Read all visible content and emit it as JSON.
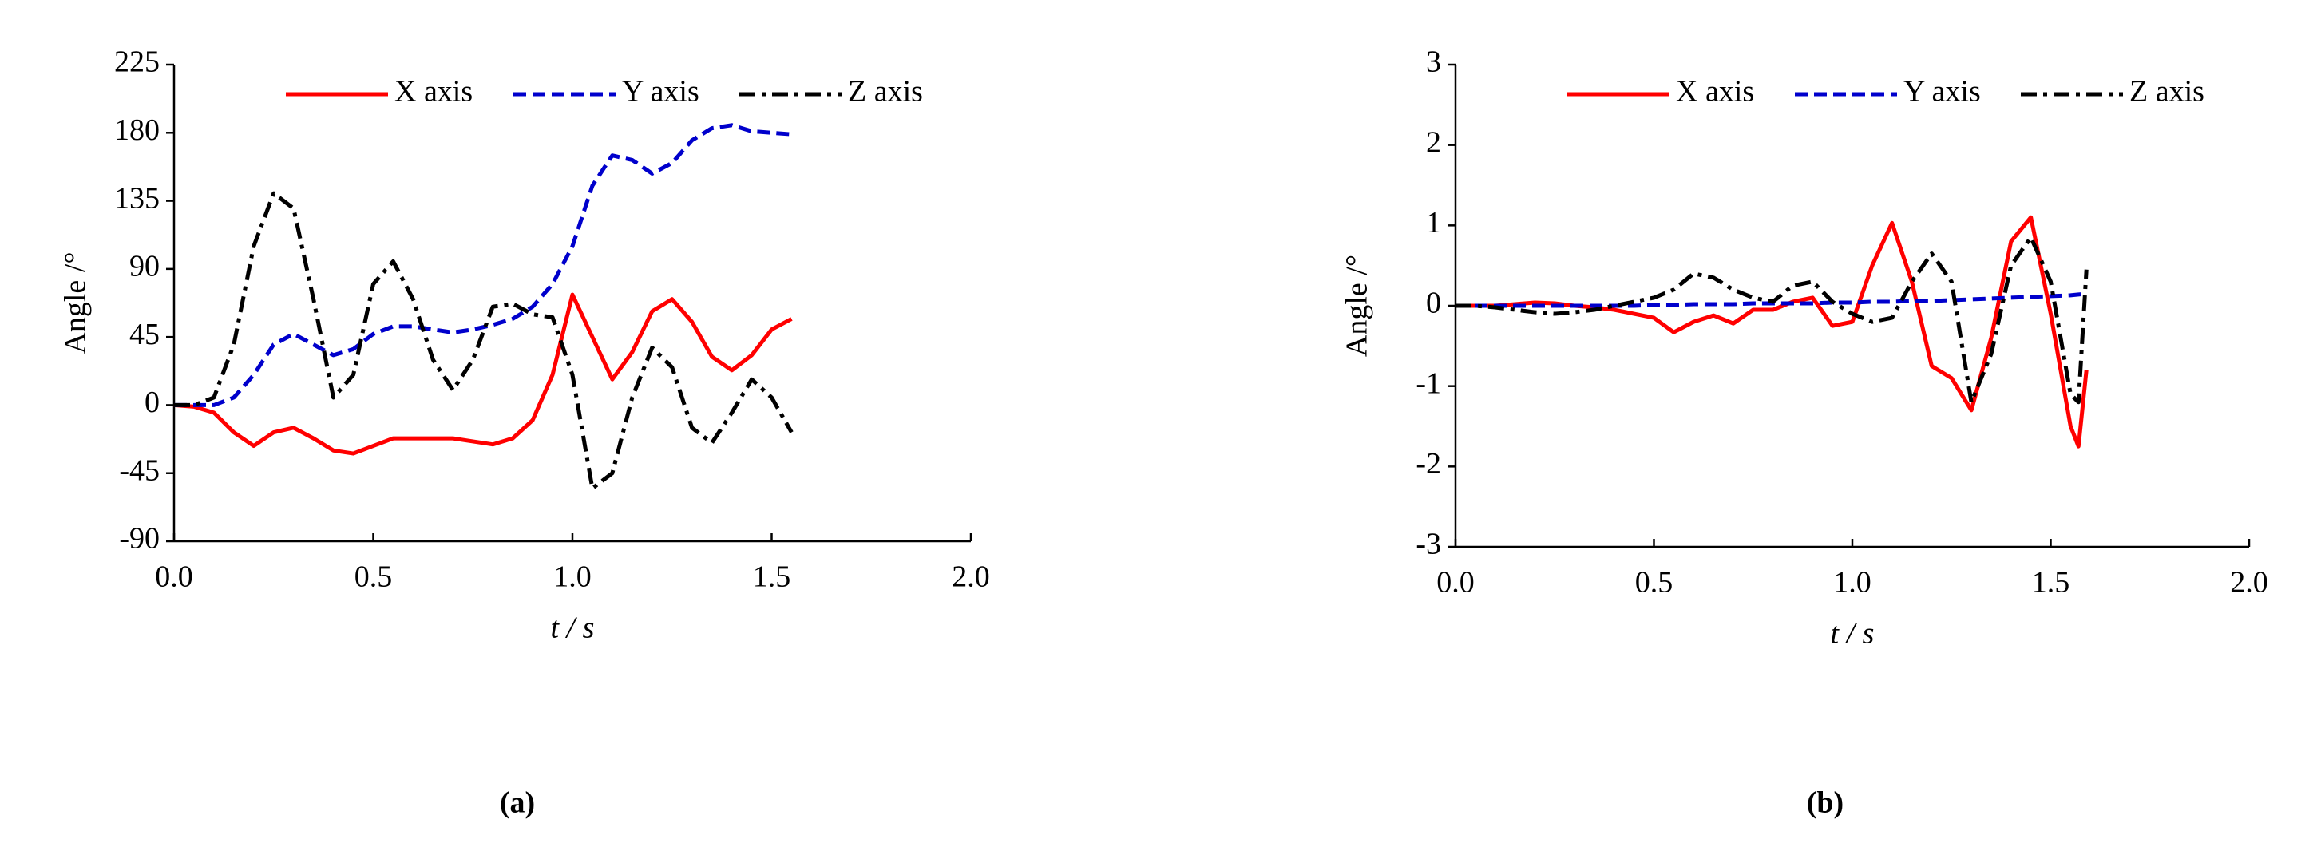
{
  "chart_data": [
    {
      "type": "line",
      "panel_label": "(a)",
      "xlabel": "t / s",
      "ylabel": "Angle /°",
      "xlim": [
        0,
        2
      ],
      "xticks": [
        {
          "value": 0,
          "label": "0.0"
        },
        {
          "value": 0.5,
          "label": "0.5"
        },
        {
          "value": 1,
          "label": "1.0"
        },
        {
          "value": 1.5,
          "label": "1.5"
        },
        {
          "value": 2,
          "label": "2.0"
        }
      ],
      "ylim": [
        -90,
        225
      ],
      "yticks": [
        -90,
        -45,
        0,
        45,
        90,
        135,
        180,
        225
      ],
      "x": [
        0,
        0.05,
        0.1,
        0.15,
        0.2,
        0.25,
        0.3,
        0.35,
        0.4,
        0.45,
        0.5,
        0.55,
        0.6,
        0.65,
        0.7,
        0.75,
        0.8,
        0.85,
        0.9,
        0.95,
        1.0,
        1.05,
        1.1,
        1.15,
        1.2,
        1.25,
        1.3,
        1.35,
        1.4,
        1.45,
        1.5,
        1.55
      ],
      "series": [
        {
          "name": "X axis",
          "color": "#ff0000",
          "dash": "solid",
          "values": [
            0,
            -1,
            -5,
            -18,
            -27,
            -18,
            -15,
            -22,
            -30,
            -32,
            -27,
            -22,
            -22,
            -22,
            -22,
            -24,
            -26,
            -22,
            -10,
            20,
            73,
            45,
            17,
            35,
            62,
            70,
            55,
            32,
            23,
            33,
            50,
            57
          ]
        },
        {
          "name": "Y axis",
          "color": "#0000cc",
          "dash": "dash",
          "values": [
            0,
            0,
            0,
            5,
            20,
            40,
            47,
            40,
            33,
            37,
            47,
            52,
            52,
            50,
            48,
            50,
            53,
            57,
            65,
            80,
            105,
            145,
            165,
            162,
            153,
            160,
            175,
            183,
            185,
            181,
            180,
            179
          ]
        },
        {
          "name": "Z axis",
          "color": "#000000",
          "dash": "dashdot",
          "values": [
            0,
            0,
            5,
            40,
            105,
            140,
            130,
            70,
            5,
            20,
            80,
            95,
            70,
            30,
            10,
            30,
            65,
            67,
            60,
            58,
            20,
            -55,
            -45,
            5,
            38,
            25,
            -15,
            -25,
            -5,
            17,
            5,
            -18
          ]
        }
      ]
    },
    {
      "type": "line",
      "panel_label": "(b)",
      "xlabel": "t / s",
      "ylabel": "Angle /°",
      "xlim": [
        0,
        2
      ],
      "xticks": [
        {
          "value": 0,
          "label": "0.0"
        },
        {
          "value": 0.5,
          "label": "0.5"
        },
        {
          "value": 1,
          "label": "1.0"
        },
        {
          "value": 1.5,
          "label": "1.5"
        },
        {
          "value": 2,
          "label": "2.0"
        }
      ],
      "ylim": [
        -3,
        3
      ],
      "yticks": [
        -3,
        -2,
        -1,
        0,
        1,
        2,
        3
      ],
      "x": [
        0,
        0.05,
        0.1,
        0.15,
        0.2,
        0.25,
        0.3,
        0.35,
        0.4,
        0.45,
        0.5,
        0.55,
        0.6,
        0.65,
        0.7,
        0.75,
        0.8,
        0.85,
        0.9,
        0.95,
        1.0,
        1.05,
        1.1,
        1.15,
        1.2,
        1.25,
        1.3,
        1.35,
        1.4,
        1.45,
        1.5,
        1.55,
        1.57,
        1.59
      ],
      "series": [
        {
          "name": "X axis",
          "color": "#ff0000",
          "dash": "solid",
          "values": [
            0,
            0,
            0,
            0.02,
            0.04,
            0.03,
            0,
            -0.02,
            -0.05,
            -0.1,
            -0.15,
            -0.33,
            -0.2,
            -0.12,
            -0.22,
            -0.05,
            -0.05,
            0.05,
            0.1,
            -0.25,
            -0.2,
            0.5,
            1.03,
            0.3,
            -0.75,
            -0.9,
            -1.3,
            -0.4,
            0.8,
            1.1,
            -0.1,
            -1.5,
            -1.75,
            -0.8
          ]
        },
        {
          "name": "Y axis",
          "color": "#0000cc",
          "dash": "dash",
          "values": [
            0,
            0,
            0,
            0,
            0,
            0,
            0,
            0,
            0,
            0,
            0.01,
            0.01,
            0.02,
            0.02,
            0.02,
            0.03,
            0.03,
            0.03,
            0.03,
            0.04,
            0.04,
            0.05,
            0.05,
            0.06,
            0.06,
            0.07,
            0.08,
            0.09,
            0.1,
            0.11,
            0.12,
            0.13,
            0.14,
            0.15
          ]
        },
        {
          "name": "Z axis",
          "color": "#000000",
          "dash": "dashdot",
          "values": [
            0,
            0,
            -0.02,
            -0.05,
            -0.08,
            -0.1,
            -0.08,
            -0.05,
            0,
            0.05,
            0.1,
            0.2,
            0.4,
            0.35,
            0.2,
            0.1,
            0.05,
            0.25,
            0.3,
            0.05,
            -0.1,
            -0.2,
            -0.15,
            0.3,
            0.65,
            0.3,
            -1.2,
            -0.6,
            0.5,
            0.85,
            0.3,
            -1.1,
            -1.2,
            0.45
          ]
        }
      ]
    }
  ]
}
